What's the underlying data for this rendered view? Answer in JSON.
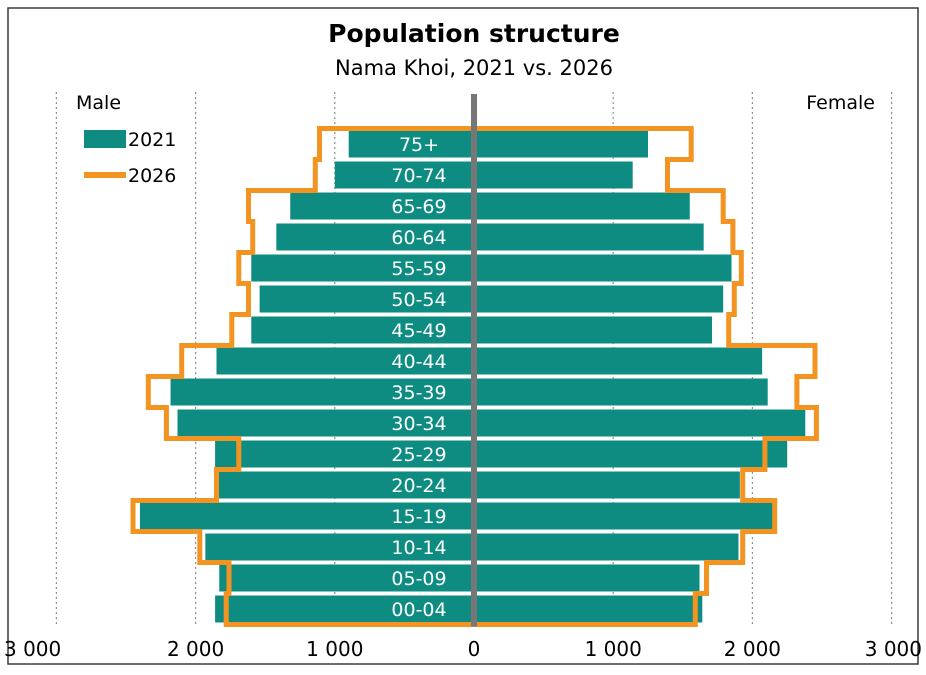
{
  "chart_data": {
    "type": "bar",
    "title": "Population structure",
    "subtitle": "Nama Khoi, 2021 vs. 2026",
    "left_label": "Male",
    "right_label": "Female",
    "categories": [
      "75+",
      "70-74",
      "65-69",
      "60-64",
      "55-59",
      "50-54",
      "45-49",
      "40-44",
      "35-39",
      "30-34",
      "25-29",
      "20-24",
      "15-19",
      "10-14",
      "05-09",
      "00-04"
    ],
    "series": [
      {
        "name": "2021",
        "male": [
          900,
          1000,
          1320,
          1420,
          1600,
          1540,
          1600,
          1850,
          2180,
          2130,
          1860,
          1850,
          2400,
          1930,
          1830,
          1860
        ],
        "female": [
          1250,
          1140,
          1550,
          1650,
          1850,
          1790,
          1710,
          2070,
          2110,
          2380,
          2250,
          1910,
          2160,
          1900,
          1620,
          1640
        ]
      },
      {
        "name": "2026",
        "male": [
          1110,
          1140,
          1620,
          1590,
          1690,
          1620,
          1740,
          2100,
          2340,
          2210,
          1690,
          1850,
          2450,
          1970,
          1760,
          1780
        ],
        "female": [
          1560,
          1390,
          1790,
          1860,
          1920,
          1870,
          1830,
          2450,
          2320,
          2460,
          2090,
          1930,
          2160,
          1930,
          1670,
          1590
        ]
      }
    ],
    "xlim": [
      -3000,
      3000
    ],
    "xticks": [
      -3000,
      -2000,
      -1000,
      0,
      1000,
      2000,
      3000
    ],
    "xtick_labels": [
      "3 000",
      "2 000",
      "1 000",
      "0",
      "1 000",
      "2 000",
      "3 000"
    ],
    "grid": "vertical dotted",
    "legend_position": "top-left",
    "colors": {
      "bars_2021": "#0e8c82",
      "line_2026": "#f39422",
      "axis": "#777777",
      "grid": "#909090"
    }
  }
}
